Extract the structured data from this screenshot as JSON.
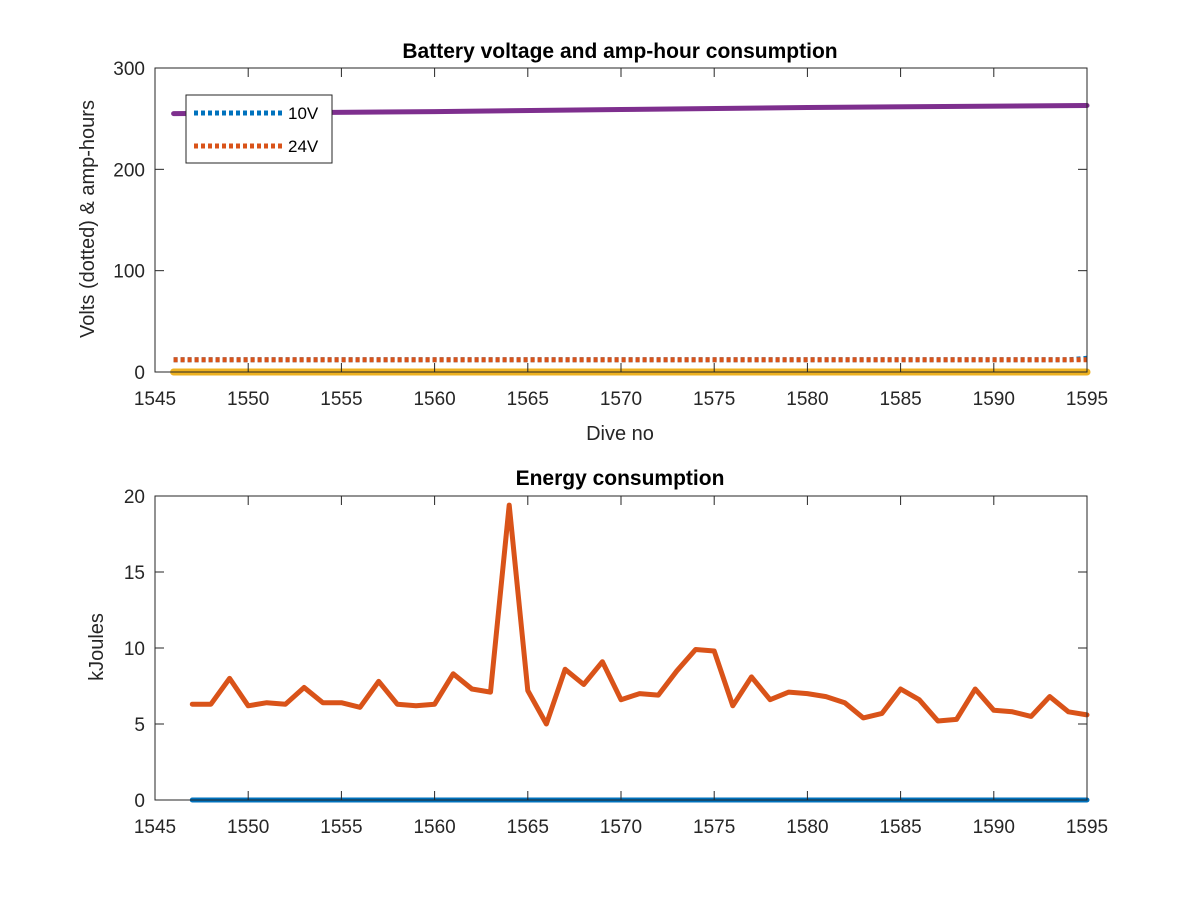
{
  "chart_data": [
    {
      "type": "line",
      "title": "Battery voltage and amp-hour consumption",
      "xlabel": "Dive no",
      "ylabel": "Volts (dotted) & amp-hours",
      "xlim": [
        1545,
        1595
      ],
      "ylim": [
        0,
        300
      ],
      "xticks": [
        "1545",
        "1550",
        "1555",
        "1560",
        "1565",
        "1570",
        "1575",
        "1580",
        "1585",
        "1590",
        "1595"
      ],
      "yticks": [
        "0",
        "100",
        "200",
        "300"
      ],
      "grid": false,
      "legend_position": "top-left",
      "series": [
        {
          "name": "10V",
          "style": "dotted",
          "color": "#0072BD",
          "x": [
            1546,
            1594,
            1595
          ],
          "y": [
            12,
            12,
            13.5
          ]
        },
        {
          "name": "24V",
          "style": "dotted",
          "color": "#D95319",
          "x": [
            1546,
            1595
          ],
          "y": [
            12,
            12
          ]
        },
        {
          "style": "solid",
          "color": "#EDB120",
          "x": [
            1546,
            1595
          ],
          "y": [
            0,
            0
          ]
        },
        {
          "style": "solid",
          "color": "#7E2F8E",
          "x": [
            1546,
            1560,
            1570,
            1580,
            1595
          ],
          "y": [
            255,
            257,
            259,
            261,
            263
          ]
        }
      ]
    },
    {
      "type": "line",
      "title": "Energy consumption",
      "xlabel": "",
      "ylabel": "kJoules",
      "xlim": [
        1545,
        1595
      ],
      "ylim": [
        0,
        20
      ],
      "xticks": [
        "1545",
        "1550",
        "1555",
        "1560",
        "1565",
        "1570",
        "1575",
        "1580",
        "1585",
        "1590",
        "1595"
      ],
      "yticks": [
        "0",
        "5",
        "10",
        "15",
        "20"
      ],
      "grid": false,
      "series": [
        {
          "style": "solid",
          "color": "#0072BD",
          "x": [
            1547,
            1595
          ],
          "y": [
            0,
            0
          ]
        },
        {
          "style": "solid",
          "color": "#D95319",
          "x": [
            1547,
            1548,
            1549,
            1550,
            1551,
            1552,
            1553,
            1554,
            1555,
            1556,
            1557,
            1558,
            1559,
            1560,
            1561,
            1562,
            1563,
            1564,
            1565,
            1566,
            1567,
            1568,
            1569,
            1570,
            1571,
            1572,
            1573,
            1574,
            1575,
            1576,
            1577,
            1578,
            1579,
            1580,
            1581,
            1582,
            1583,
            1584,
            1585,
            1586,
            1587,
            1588,
            1589,
            1590,
            1591,
            1592,
            1593,
            1594,
            1595
          ],
          "y": [
            6.3,
            6.3,
            8.0,
            6.2,
            6.4,
            6.3,
            7.4,
            6.4,
            6.4,
            6.1,
            7.8,
            6.3,
            6.2,
            6.3,
            8.3,
            7.3,
            7.1,
            19.4,
            7.2,
            5.0,
            8.6,
            7.6,
            9.1,
            6.6,
            7.0,
            6.9,
            8.5,
            9.9,
            9.8,
            6.2,
            8.1,
            6.6,
            7.1,
            7.0,
            6.8,
            6.4,
            5.4,
            5.7,
            7.3,
            6.6,
            5.2,
            5.3,
            7.3,
            5.9,
            5.8,
            5.5,
            6.8,
            5.8,
            5.6
          ]
        }
      ]
    }
  ]
}
